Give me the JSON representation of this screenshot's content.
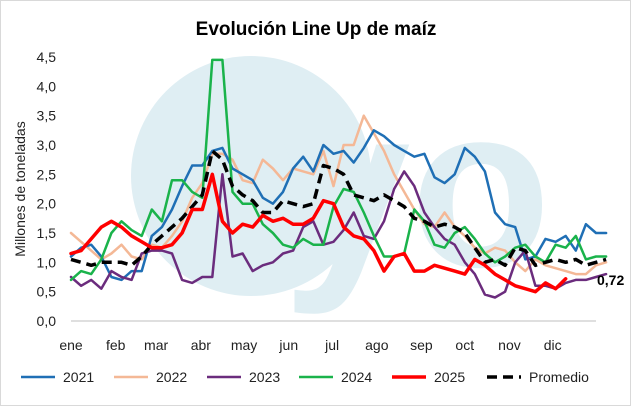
{
  "colors": {
    "2021": "#1f6fb5",
    "2022": "#f4b896",
    "2023": "#6b2c7d",
    "2024": "#1ab34b",
    "2025": "#ff0000",
    "Promedio": "#000000",
    "watermark": "#dfeef3"
  },
  "chart_data": {
    "type": "line",
    "title": "Evolución Line Up de maíz",
    "xlabel": "",
    "ylabel": "Millones de toneladas",
    "ylim": [
      0,
      4.5
    ],
    "yticks": [
      "0,0",
      "0,5",
      "1,0",
      "1,5",
      "2,0",
      "2,5",
      "3,0",
      "3,5",
      "4,0",
      "4,5"
    ],
    "xlim": [
      1,
      53
    ],
    "x_tick_labels": [
      {
        "label": "ene",
        "week": 1
      },
      {
        "label": "feb",
        "week": 5.43
      },
      {
        "label": "mar",
        "week": 9.43
      },
      {
        "label": "abr",
        "week": 13.86
      },
      {
        "label": "may",
        "week": 18.14
      },
      {
        "label": "jun",
        "week": 22.57
      },
      {
        "label": "jul",
        "week": 26.86
      },
      {
        "label": "ago",
        "week": 31.29
      },
      {
        "label": "sep",
        "week": 35.71
      },
      {
        "label": "oct",
        "week": 40
      },
      {
        "label": "nov",
        "week": 44.43
      },
      {
        "label": "dic",
        "week": 48.71
      }
    ],
    "grid": false,
    "legend_position": "bottom",
    "series": [
      {
        "name": "2021",
        "values": [
          1.1,
          1.25,
          1.3,
          1.1,
          0.75,
          0.7,
          0.85,
          0.85,
          1.45,
          1.6,
          1.9,
          2.3,
          2.65,
          2.65,
          2.9,
          2.95,
          2.6,
          2.5,
          2.4,
          2.1,
          2.0,
          2.2,
          2.6,
          2.8,
          2.55,
          3.0,
          2.85,
          2.9,
          2.7,
          2.95,
          3.25,
          3.15,
          3.0,
          2.9,
          2.8,
          2.85,
          2.45,
          2.35,
          2.5,
          2.95,
          2.8,
          2.55,
          1.85,
          1.65,
          1.6,
          1.05,
          1.1,
          1.4,
          1.35,
          1.45,
          1.2,
          1.65,
          1.5,
          1.5
        ]
      },
      {
        "name": "2022",
        "values": [
          1.5,
          1.35,
          1.2,
          1.05,
          1.15,
          1.3,
          1.1,
          1.05,
          1.3,
          1.25,
          1.45,
          1.7,
          2.1,
          2.35,
          2.85,
          2.85,
          2.75,
          2.4,
          2.35,
          2.75,
          2.6,
          2.4,
          2.6,
          2.55,
          2.5,
          2.9,
          2.3,
          3.0,
          3.0,
          3.5,
          3.2,
          2.9,
          2.5,
          2.2,
          1.9,
          1.65,
          1.6,
          1.85,
          1.6,
          1.45,
          1.25,
          1.15,
          1.25,
          1.2,
          1.0,
          0.85,
          1.05,
          0.95,
          0.9,
          0.85,
          0.8,
          0.8,
          0.95,
          1.0
        ]
      },
      {
        "name": "2023",
        "values": [
          0.75,
          0.6,
          0.7,
          0.55,
          0.85,
          0.75,
          0.7,
          1.15,
          1.2,
          1.2,
          1.15,
          0.7,
          0.65,
          0.75,
          0.75,
          2.5,
          1.1,
          1.15,
          0.85,
          0.95,
          1.0,
          1.15,
          1.2,
          1.6,
          1.7,
          1.3,
          1.35,
          1.55,
          1.85,
          1.45,
          1.4,
          1.7,
          2.25,
          2.55,
          2.3,
          1.85,
          1.6,
          1.4,
          1.3,
          1.0,
          0.8,
          0.45,
          0.4,
          0.5,
          1.0,
          1.2,
          0.6,
          0.6,
          0.55,
          0.65,
          0.7,
          0.7,
          0.75,
          0.8
        ]
      },
      {
        "name": "2024",
        "values": [
          0.7,
          0.85,
          0.8,
          1.05,
          1.5,
          1.7,
          1.55,
          1.45,
          1.9,
          1.7,
          2.4,
          2.4,
          2.2,
          2.1,
          4.45,
          4.45,
          2.2,
          2.0,
          2.0,
          1.65,
          1.5,
          1.3,
          1.25,
          1.4,
          1.3,
          1.3,
          1.95,
          2.25,
          2.2,
          1.85,
          1.45,
          1.1,
          1.1,
          1.15,
          1.9,
          1.7,
          1.3,
          1.25,
          1.5,
          1.6,
          1.4,
          1.15,
          1.0,
          1.1,
          1.25,
          1.3,
          1.1,
          1.0,
          1.3,
          1.25,
          1.45,
          1.05,
          1.1,
          1.1
        ]
      },
      {
        "name": "2025",
        "values": [
          1.15,
          1.2,
          1.4,
          1.6,
          1.7,
          1.6,
          1.45,
          1.35,
          1.25,
          1.25,
          1.3,
          1.5,
          1.9,
          1.9,
          2.5,
          1.7,
          1.5,
          1.65,
          1.6,
          1.8,
          1.7,
          1.75,
          1.65,
          1.65,
          1.75,
          2.05,
          2.0,
          1.6,
          1.45,
          1.4,
          1.2,
          0.85,
          1.1,
          1.15,
          0.85,
          0.85,
          0.95,
          0.9,
          0.85,
          0.8,
          1.05,
          0.95,
          0.8,
          0.7,
          0.6,
          0.55,
          0.5,
          0.65,
          0.55,
          0.72
        ]
      },
      {
        "name": "Promedio",
        "values": [
          1.05,
          1.0,
          0.95,
          1.0,
          1.0,
          1.0,
          0.95,
          1.1,
          1.3,
          1.45,
          1.6,
          1.75,
          1.95,
          2.15,
          2.9,
          2.75,
          2.3,
          2.15,
          2.05,
          1.85,
          1.85,
          2.05,
          2.0,
          1.95,
          2.0,
          2.65,
          2.6,
          2.5,
          2.15,
          2.1,
          2.05,
          2.15,
          2.05,
          1.95,
          1.75,
          1.7,
          1.6,
          1.65,
          1.6,
          1.5,
          1.25,
          1.0,
          1.05,
          0.95,
          1.25,
          1.2,
          0.95,
          1.0,
          1.05,
          1.0,
          1.05,
          0.95,
          1.0,
          1.05
        ]
      }
    ],
    "annotations": [
      {
        "text": "0,72",
        "series": "2025",
        "value": 0.72
      }
    ]
  }
}
